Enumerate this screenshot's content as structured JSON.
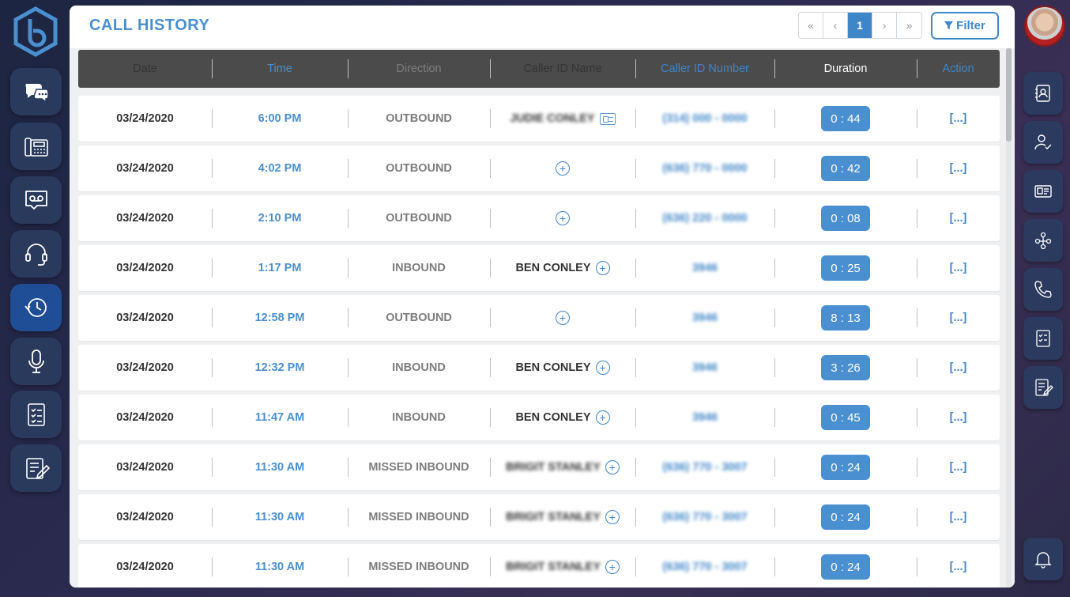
{
  "header": {
    "title": "CALL HISTORY",
    "filter_label": "Filter"
  },
  "pagination": {
    "first": "«",
    "prev": "‹",
    "current": "1",
    "next": "›",
    "last": "»"
  },
  "columns": [
    "Date",
    "Time",
    "Direction",
    "Caller ID Name",
    "Caller ID Number",
    "Duration",
    "Action"
  ],
  "rows": [
    {
      "date": "03/24/2020",
      "time": "6:00 PM",
      "direction": "OUTBOUND",
      "name": "JUDIE CONLEY",
      "name_blurred": true,
      "name_icon": "contact-card",
      "number": "(314) 000 - 0000",
      "number_blurred": true,
      "duration": "0 : 44",
      "action": "[...]"
    },
    {
      "date": "03/24/2020",
      "time": "4:02 PM",
      "direction": "OUTBOUND",
      "name": "",
      "name_blurred": false,
      "name_icon": "plus",
      "number": "(636) 770 - 0000",
      "number_blurred": true,
      "duration": "0 : 42",
      "action": "[...]"
    },
    {
      "date": "03/24/2020",
      "time": "2:10 PM",
      "direction": "OUTBOUND",
      "name": "",
      "name_blurred": false,
      "name_icon": "plus",
      "number": "(636) 220 - 0000",
      "number_blurred": true,
      "duration": "0 : 08",
      "action": "[...]"
    },
    {
      "date": "03/24/2020",
      "time": "1:17 PM",
      "direction": "INBOUND",
      "name": "BEN CONLEY",
      "name_blurred": false,
      "name_icon": "plus",
      "number": "3946",
      "number_blurred": true,
      "duration": "0 : 25",
      "action": "[...]"
    },
    {
      "date": "03/24/2020",
      "time": "12:58 PM",
      "direction": "OUTBOUND",
      "name": "",
      "name_blurred": false,
      "name_icon": "plus",
      "number": "3946",
      "number_blurred": true,
      "duration": "8 : 13",
      "action": "[...]"
    },
    {
      "date": "03/24/2020",
      "time": "12:32 PM",
      "direction": "INBOUND",
      "name": "BEN CONLEY",
      "name_blurred": false,
      "name_icon": "plus",
      "number": "3946",
      "number_blurred": true,
      "duration": "3 : 26",
      "action": "[...]"
    },
    {
      "date": "03/24/2020",
      "time": "11:47 AM",
      "direction": "INBOUND",
      "name": "BEN CONLEY",
      "name_blurred": false,
      "name_icon": "plus",
      "number": "3946",
      "number_blurred": true,
      "duration": "0 : 45",
      "action": "[...]"
    },
    {
      "date": "03/24/2020",
      "time": "11:30 AM",
      "direction": "MISSED INBOUND",
      "name": "BRIGIT STANLEY",
      "name_blurred": true,
      "name_icon": "plus",
      "number": "(636) 770 - 3007",
      "number_blurred": true,
      "duration": "0 : 24",
      "action": "[...]"
    },
    {
      "date": "03/24/2020",
      "time": "11:30 AM",
      "direction": "MISSED INBOUND",
      "name": "BRIGIT STANLEY",
      "name_blurred": true,
      "name_icon": "plus",
      "number": "(636) 770 - 3007",
      "number_blurred": true,
      "duration": "0 : 24",
      "action": "[...]"
    },
    {
      "date": "03/24/2020",
      "time": "11:30 AM",
      "direction": "MISSED INBOUND",
      "name": "BRIGIT STANLEY",
      "name_blurred": true,
      "name_icon": "plus",
      "number": "(636) 770 - 3007",
      "number_blurred": true,
      "duration": "0 : 24",
      "action": "[...]"
    }
  ],
  "left_nav": [
    "chat-icon",
    "desk-phone-icon",
    "voicemail-icon",
    "headset-icon",
    "call-history-icon",
    "microphone-icon",
    "checklist-icon",
    "notes-icon"
  ],
  "left_nav_active": "call-history-icon",
  "right_nav": [
    "contacts-book-icon",
    "user-check-icon",
    "id-card-icon",
    "org-chart-icon",
    "phone-icon",
    "clipboard-check-icon",
    "edit-notes-icon"
  ],
  "colors": {
    "accent": "#3f86c8",
    "header_bg": "#4b4b4b",
    "duration_badge": "#4a8fcf"
  }
}
